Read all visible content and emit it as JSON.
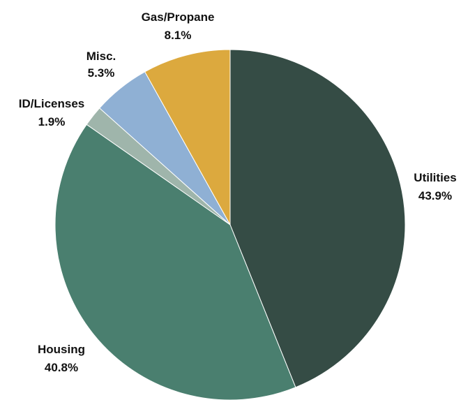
{
  "chart_data": {
    "type": "pie",
    "title": "",
    "slices": [
      {
        "label": "Utilities",
        "value": 43.9,
        "value_label": "43.9%",
        "color": "#354c45"
      },
      {
        "label": "Housing",
        "value": 40.8,
        "value_label": "40.8%",
        "color": "#4a7f6f"
      },
      {
        "label": "ID/Licenses",
        "value": 1.9,
        "value_label": "1.9%",
        "color": "#9fb5ab"
      },
      {
        "label": "Misc.",
        "value": 5.3,
        "value_label": "5.3%",
        "color": "#8fb0d4"
      },
      {
        "label": "Gas/Propane",
        "value": 8.1,
        "value_label": "8.1%",
        "color": "#dca93e"
      }
    ],
    "start_angle": "12 o'clock",
    "direction": "clockwise",
    "legend": "none"
  }
}
